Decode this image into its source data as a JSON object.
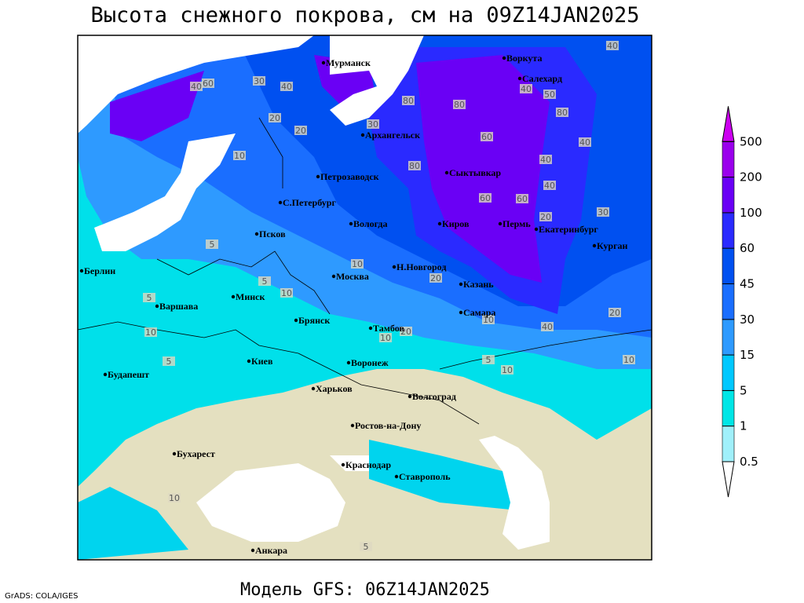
{
  "map": {
    "title": "Высота снежного покрова, см на 09Z14JAN2025",
    "subtitle": "Модель GFS: 06Z14JAN2025",
    "credit": "GrADS: COLA/IGES",
    "cities": [
      "Мурманск",
      "Воркута",
      "Салехард",
      "Архангельск",
      "Петрозаводск",
      "Сыктывкар",
      "С.Петербург",
      "Вологда",
      "Киров",
      "Пермь",
      "Екатеринбург",
      "Псков",
      "Курган",
      "Берлин",
      "Н.Новгород",
      "Москва",
      "Казань",
      "Минск",
      "Варшава",
      "Самара",
      "Брянск",
      "Тамбов",
      "Киев",
      "Воронеж",
      "Будапешт",
      "Харьков",
      "Волгоград",
      "Ростов-на-Дону",
      "Бухарест",
      "Краснодар",
      "Ставрополь",
      "Анкара"
    ],
    "contour_labels": [
      40,
      60,
      30,
      40,
      20,
      80,
      30,
      20,
      10,
      80,
      40,
      80,
      60,
      40,
      60,
      40,
      80,
      50,
      40,
      40,
      30,
      60,
      20,
      10,
      5,
      10,
      5,
      10,
      20,
      10,
      20,
      10,
      5,
      10,
      5,
      5,
      10,
      40,
      20,
      10,
      5
    ],
    "legend": {
      "levels": [
        0.5,
        1,
        5,
        15,
        30,
        45,
        60,
        100,
        200,
        500
      ],
      "colors": [
        "#ffffff",
        "#a0f0fa",
        "#00e6e6",
        "#00c8ff",
        "#2e9aff",
        "#1a6eff",
        "#0050f0",
        "#2a2aff",
        "#6a00f5",
        "#9a00ec",
        "#cc00f0"
      ]
    }
  }
}
